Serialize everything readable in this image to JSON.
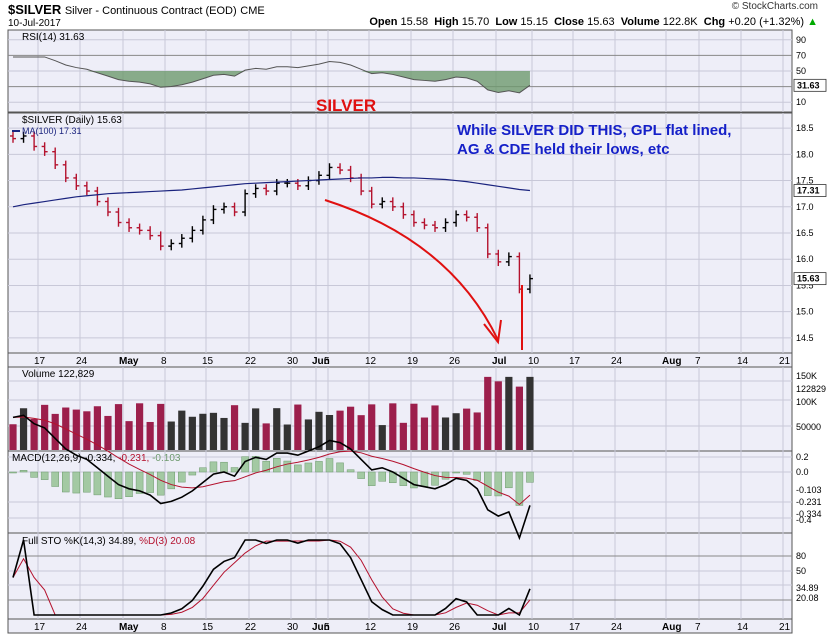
{
  "header": {
    "symbol": "$SILVER",
    "name": "Silver - Continuous Contract (EOD)",
    "exchange": "CME",
    "date": "10-Jul-2017",
    "brand": "© StockCharts.com",
    "open_label": "Open",
    "open": "15.58",
    "high_label": "High",
    "high": "15.70",
    "low_label": "Low",
    "low": "15.15",
    "close_label": "Close",
    "close": "15.63",
    "volume_label": "Volume",
    "volume": "122.8K",
    "chg_label": "Chg",
    "chg": "+0.20 (+1.32%)",
    "chg_arrow": "▲"
  },
  "x_ticks": [
    "17",
    "24",
    "May",
    "8",
    "15",
    "22",
    "30",
    "Jun",
    "5",
    "12",
    "19",
    "26",
    "Jul",
    "10",
    "17",
    "24",
    "Aug",
    "7",
    "14",
    "21"
  ],
  "panels": {
    "rsi": {
      "label": "RSI(14) 31.63",
      "value_label": "31.63",
      "ticks": [
        "90",
        "70",
        "50",
        "30",
        "10"
      ]
    },
    "price": {
      "label": "$SILVER (Daily) 15.63",
      "ma_label": "MA(100) 17.31",
      "ma_value_label": "17.31",
      "price_value_label": "15.63",
      "ticks": [
        "18.5",
        "18.0",
        "17.5",
        "17.0",
        "16.5",
        "16.0",
        "15.5",
        "15.0",
        "14.5"
      ]
    },
    "volume": {
      "label": "Volume 122,829",
      "ticks": [
        "150K",
        "122829",
        "100K",
        "50000"
      ]
    },
    "macd": {
      "label_main": "MACD(12,26,9) -0.334,",
      "label_signal": "-0.231,",
      "label_hist": "-0.103",
      "ticks": [
        "0.2",
        "0.0",
        "-0.103",
        "-0.231",
        "-0.334",
        "-0.4"
      ]
    },
    "sto": {
      "label_main": "Full STO %K(14,3)",
      "label_k": "34.89,",
      "label_d": "%D(3) 20.08",
      "ticks": [
        "80",
        "50",
        "34.89",
        "20.08"
      ]
    }
  },
  "annotations": {
    "title": "SILVER",
    "note_line1": "While SILVER DID THIS,  GPL flat lined,",
    "note_line2": "AG & CDE held their lows, etc"
  },
  "colors": {
    "up": "#000000",
    "down": "#b4122e",
    "ma": "#1a237e",
    "rsi_fill": "#6e9a6e",
    "vol_down": "#9c1f4c",
    "vol_up": "#333333",
    "annotation_red": "#e01010",
    "annotation_blue": "#1520c8",
    "panel_bg": "#eeeef8"
  },
  "chart_data": {
    "type": "candlestick",
    "title": "$SILVER (Daily)",
    "ylim": [
      14.25,
      18.75
    ],
    "x_start": "2017-04-14",
    "x_end": "2017-07-10",
    "close": [
      18.3,
      18.35,
      18.15,
      18.05,
      17.8,
      17.55,
      17.4,
      17.3,
      17.1,
      16.9,
      16.7,
      16.6,
      16.55,
      16.45,
      16.25,
      16.3,
      16.4,
      16.55,
      16.75,
      16.95,
      17.0,
      16.9,
      17.25,
      17.35,
      17.3,
      17.45,
      17.45,
      17.4,
      17.5,
      17.6,
      17.75,
      17.7,
      17.55,
      17.3,
      17.05,
      17.1,
      17.0,
      16.85,
      16.7,
      16.65,
      16.6,
      16.7,
      16.85,
      16.8,
      16.6,
      16.1,
      15.95,
      16.05,
      15.43,
      15.63
    ],
    "ma100": [
      17.0,
      17.04,
      17.07,
      17.1,
      17.13,
      17.16,
      17.19,
      17.21,
      17.23,
      17.25,
      17.26,
      17.27,
      17.28,
      17.29,
      17.3,
      17.31,
      17.32,
      17.34,
      17.36,
      17.38,
      17.4,
      17.42,
      17.44,
      17.45,
      17.46,
      17.47,
      17.48,
      17.49,
      17.5,
      17.51,
      17.52,
      17.53,
      17.54,
      17.55,
      17.55,
      17.56,
      17.56,
      17.55,
      17.55,
      17.54,
      17.53,
      17.52,
      17.5,
      17.48,
      17.45,
      17.42,
      17.39,
      17.36,
      17.33,
      17.31
    ],
    "rsi_last": 31.63,
    "volume_last": 122829,
    "macd": {
      "macd": -0.334,
      "signal": -0.231,
      "histogram": -0.103
    },
    "full_sto": {
      "k": 34.89,
      "d": 20.08
    }
  }
}
